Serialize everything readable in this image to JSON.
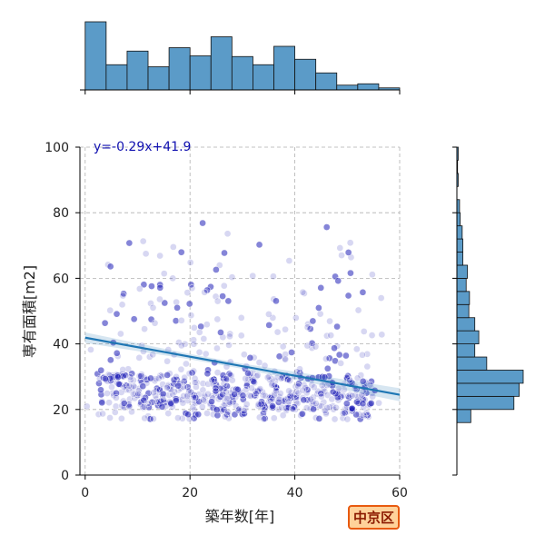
{
  "chart_data": {
    "type": "scatter",
    "title": "",
    "xlabel": "築年数[年]",
    "ylabel": "専有面積[m2]",
    "xlim": [
      -1,
      60
    ],
    "ylim": [
      0,
      100
    ],
    "xticks": [
      0,
      20,
      40,
      60
    ],
    "yticks": [
      0,
      20,
      40,
      60,
      80,
      100
    ],
    "grid": true,
    "regression": {
      "label": "y=-0.29x+41.9",
      "slope": -0.29,
      "intercept": 41.9,
      "line_color": "#1f77b4"
    },
    "point_color": "#2020b8",
    "hist_color": "#5b9bc8",
    "x_histogram": {
      "bin_edges": [
        0,
        4,
        8,
        12,
        16,
        20,
        24,
        28,
        32,
        36,
        40,
        44,
        48,
        52,
        56,
        60
      ],
      "relative_heights": [
        1.0,
        0.37,
        0.57,
        0.34,
        0.62,
        0.5,
        0.78,
        0.49,
        0.37,
        0.64,
        0.45,
        0.25,
        0.07,
        0.09,
        0.03
      ]
    },
    "y_histogram": {
      "bin_edges": [
        16,
        20,
        24,
        28,
        32,
        36,
        40,
        44,
        48,
        52,
        56,
        60,
        64,
        68,
        72,
        76,
        80,
        84,
        88,
        92,
        96,
        100
      ],
      "relative_widths": [
        0.21,
        0.86,
        0.94,
        1.0,
        0.45,
        0.27,
        0.33,
        0.27,
        0.18,
        0.19,
        0.14,
        0.16,
        0.09,
        0.09,
        0.08,
        0.05,
        0.04,
        0.0,
        0.02,
        0.01,
        0.02
      ]
    }
  },
  "badge": {
    "label": "中京区"
  }
}
